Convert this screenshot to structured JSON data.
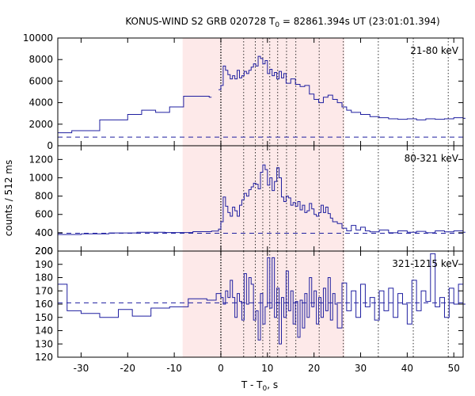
{
  "chart_data": {
    "type": "line",
    "title": {
      "prefix": "KONUS-WIND S2 GRB 020728 T",
      "sub": "0",
      "suffix": " = 82861.394s UT (23:01:01.394)"
    },
    "xlabel": {
      "prefix": "T - T",
      "sub": "0",
      "suffix": ", s"
    },
    "ylabel": "counts / 512 ms",
    "xlim": [
      -35,
      52
    ],
    "xticks": [
      -30,
      -20,
      -10,
      0,
      10,
      20,
      30,
      40,
      50
    ],
    "shaded_interval": [
      -8.2,
      26.5
    ],
    "trigger_line": 0,
    "dotted_lines": [
      4.9,
      7.4,
      9.0,
      10.5,
      12.2,
      14.1,
      16.1,
      21.1,
      26.3,
      33.8,
      41.3,
      48.8
    ],
    "colors": {
      "series": "#1f1fa0",
      "shade": "#fde9e9",
      "background_level": "#1f1fa0"
    },
    "panels": [
      {
        "label": "21-80 keV",
        "ylim": [
          0,
          10000
        ],
        "yticks": [
          0,
          2000,
          4000,
          6000,
          8000,
          10000
        ],
        "background": 800,
        "segments": [
          [
            [
              -35,
              1200
            ],
            [
              -32,
              1400
            ],
            [
              -26,
              2400
            ],
            [
              -20,
              2900
            ],
            [
              -17,
              3300
            ],
            [
              -14,
              3100
            ],
            [
              -11,
              3600
            ],
            [
              -8,
              4600
            ],
            [
              -2.5,
              4500
            ]
          ],
          [
            [
              -0.5,
              5200
            ],
            [
              0,
              5600
            ],
            [
              0.5,
              7400
            ],
            [
              1,
              7000
            ],
            [
              1.5,
              6600
            ],
            [
              2,
              6200
            ],
            [
              2.5,
              6500
            ],
            [
              3,
              6200
            ],
            [
              3.5,
              7000
            ],
            [
              4,
              6300
            ],
            [
              4.5,
              6500
            ],
            [
              5,
              6900
            ],
            [
              5.5,
              6700
            ],
            [
              6,
              7000
            ],
            [
              6.5,
              7300
            ],
            [
              7,
              7600
            ],
            [
              7.5,
              7400
            ],
            [
              8,
              8300
            ],
            [
              8.5,
              8100
            ],
            [
              9,
              7600
            ],
            [
              9.5,
              7900
            ],
            [
              10,
              6700
            ],
            [
              10.5,
              7100
            ],
            [
              11,
              6500
            ],
            [
              11.5,
              6800
            ],
            [
              12,
              6200
            ],
            [
              12.5,
              6900
            ],
            [
              13,
              6300
            ],
            [
              13.5,
              6700
            ],
            [
              14,
              5800
            ],
            [
              15,
              6200
            ],
            [
              16,
              5700
            ],
            [
              17,
              5500
            ],
            [
              18,
              5600
            ],
            [
              19,
              4800
            ],
            [
              20,
              4300
            ],
            [
              21,
              4000
            ],
            [
              22,
              4500
            ],
            [
              23,
              4700
            ],
            [
              24,
              4300
            ],
            [
              25,
              4000
            ],
            [
              26,
              3600
            ],
            [
              27,
              3300
            ],
            [
              28,
              3100
            ],
            [
              30,
              2900
            ],
            [
              32,
              2700
            ],
            [
              34,
              2600
            ],
            [
              36,
              2500
            ],
            [
              38,
              2450
            ],
            [
              40,
              2500
            ],
            [
              42,
              2400
            ],
            [
              44,
              2500
            ],
            [
              46,
              2450
            ],
            [
              48,
              2500
            ],
            [
              50,
              2600
            ],
            [
              52,
              2550
            ]
          ]
        ]
      },
      {
        "label": "80-321 keV",
        "ylim": [
          200,
          1350
        ],
        "yticks": [
          200,
          400,
          600,
          800,
          1000,
          1200
        ],
        "background": 395,
        "segments": [
          [
            [
              -35,
              380
            ],
            [
              -30,
              388
            ],
            [
              -24,
              398
            ],
            [
              -18,
              405
            ],
            [
              -12,
              402
            ],
            [
              -6,
              412
            ],
            [
              -2,
              418
            ],
            [
              -0.5,
              440
            ],
            [
              0,
              520
            ],
            [
              0.5,
              790
            ],
            [
              1,
              690
            ],
            [
              1.5,
              620
            ],
            [
              2,
              580
            ],
            [
              2.5,
              680
            ],
            [
              3,
              640
            ],
            [
              3.5,
              580
            ],
            [
              4,
              700
            ],
            [
              4.5,
              760
            ],
            [
              5,
              830
            ],
            [
              5.5,
              800
            ],
            [
              6,
              870
            ],
            [
              6.5,
              900
            ],
            [
              7,
              940
            ],
            [
              7.5,
              930
            ],
            [
              8,
              880
            ],
            [
              8.5,
              1060
            ],
            [
              9,
              1140
            ],
            [
              9.5,
              1090
            ],
            [
              10,
              920
            ],
            [
              10.5,
              1000
            ],
            [
              11,
              860
            ],
            [
              11.5,
              960
            ],
            [
              12,
              1110
            ],
            [
              12.5,
              1000
            ],
            [
              13,
              790
            ],
            [
              13.5,
              740
            ],
            [
              14,
              800
            ],
            [
              14.5,
              780
            ],
            [
              15,
              700
            ],
            [
              15.5,
              730
            ],
            [
              16,
              690
            ],
            [
              16.5,
              740
            ],
            [
              17,
              650
            ],
            [
              17.5,
              700
            ],
            [
              18,
              620
            ],
            [
              18.5,
              640
            ],
            [
              19,
              720
            ],
            [
              19.5,
              660
            ],
            [
              20,
              600
            ],
            [
              20.5,
              580
            ],
            [
              21,
              620
            ],
            [
              21.5,
              700
            ],
            [
              22,
              620
            ],
            [
              22.5,
              680
            ],
            [
              23,
              610
            ],
            [
              23.5,
              560
            ],
            [
              24,
              520
            ],
            [
              25,
              500
            ],
            [
              26,
              450
            ],
            [
              27,
              420
            ],
            [
              28,
              480
            ],
            [
              29,
              430
            ],
            [
              30,
              460
            ],
            [
              31,
              420
            ],
            [
              32,
              410
            ],
            [
              34,
              430
            ],
            [
              36,
              400
            ],
            [
              38,
              420
            ],
            [
              40,
              405
            ],
            [
              42,
              415
            ],
            [
              44,
              400
            ],
            [
              46,
              420
            ],
            [
              48,
              410
            ],
            [
              50,
              420
            ],
            [
              52,
              405
            ]
          ]
        ]
      },
      {
        "label": "321-1215 keV",
        "ylim": [
          120,
          200
        ],
        "yticks": [
          120,
          130,
          140,
          150,
          160,
          170,
          180,
          190,
          200
        ],
        "background": 161,
        "segments": [
          [
            [
              -35,
              175
            ],
            [
              -33,
              155
            ],
            [
              -30,
              153
            ],
            [
              -26,
              150
            ],
            [
              -22,
              156
            ],
            [
              -19,
              151
            ],
            [
              -15,
              157
            ],
            [
              -11,
              158
            ],
            [
              -7,
              164
            ],
            [
              -3,
              163
            ],
            [
              -1,
              168
            ],
            [
              0,
              165
            ],
            [
              0.5,
              160
            ],
            [
              1,
              170
            ],
            [
              1.5,
              165
            ],
            [
              2,
              178
            ],
            [
              2.5,
              165
            ],
            [
              3,
              150
            ],
            [
              3.5,
              168
            ],
            [
              4,
              162
            ],
            [
              4.5,
              148
            ],
            [
              5,
              183
            ],
            [
              5.5,
              160
            ],
            [
              6,
              180
            ],
            [
              6.5,
              175
            ],
            [
              7,
              148
            ],
            [
              7.5,
              155
            ],
            [
              8,
              133
            ],
            [
              8.5,
              168
            ],
            [
              9,
              145
            ],
            [
              9.5,
              158
            ],
            [
              10,
              195
            ],
            [
              10.5,
              157
            ],
            [
              11,
              195
            ],
            [
              11.5,
              150
            ],
            [
              12,
              172
            ],
            [
              12.5,
              130
            ],
            [
              13,
              165
            ],
            [
              13.5,
              150
            ],
            [
              14,
              185
            ],
            [
              14.5,
              155
            ],
            [
              15,
              170
            ],
            [
              15.5,
              145
            ],
            [
              16,
              162
            ],
            [
              16.5,
              135
            ],
            [
              17,
              163
            ],
            [
              17.5,
              142
            ],
            [
              18,
              168
            ],
            [
              18.5,
              150
            ],
            [
              19,
              180
            ],
            [
              19.5,
              158
            ],
            [
              20,
              170
            ],
            [
              20.5,
              145
            ],
            [
              21,
              165
            ],
            [
              21.5,
              150
            ],
            [
              22,
              172
            ],
            [
              22.5,
              155
            ],
            [
              23,
              180
            ],
            [
              23.5,
              148
            ],
            [
              24,
              168
            ],
            [
              24.5,
              160
            ],
            [
              25,
              142
            ],
            [
              26,
              176
            ],
            [
              27,
              155
            ],
            [
              28,
              170
            ],
            [
              29,
              150
            ],
            [
              30,
              175
            ],
            [
              31,
              158
            ],
            [
              32,
              165
            ],
            [
              33,
              148
            ],
            [
              34,
              170
            ],
            [
              35,
              155
            ],
            [
              36,
              172
            ],
            [
              37,
              150
            ],
            [
              38,
              168
            ],
            [
              39,
              160
            ],
            [
              40,
              145
            ],
            [
              41,
              178
            ],
            [
              42,
              155
            ],
            [
              43,
              170
            ],
            [
              44,
              162
            ],
            [
              45,
              198
            ],
            [
              46,
              158
            ],
            [
              47,
              165
            ],
            [
              48,
              150
            ],
            [
              49,
              172
            ],
            [
              50,
              160
            ],
            [
              51,
              175
            ],
            [
              52,
              160
            ]
          ]
        ]
      }
    ]
  }
}
